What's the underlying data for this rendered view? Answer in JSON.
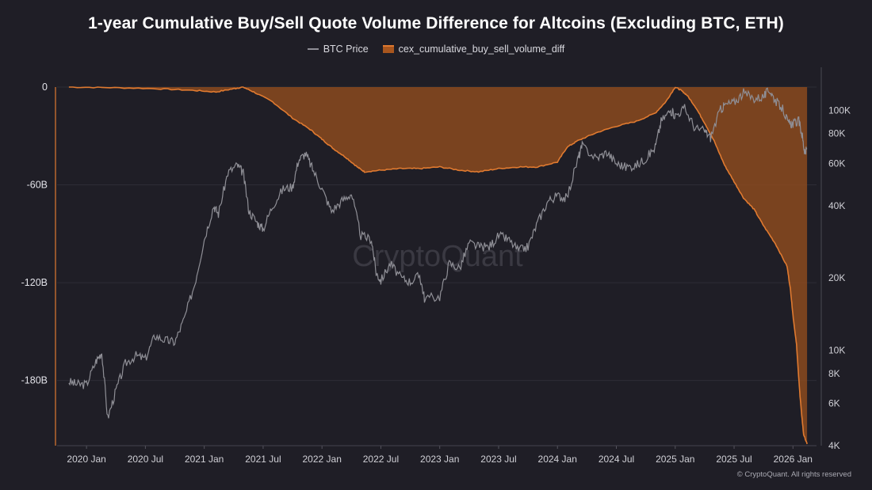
{
  "chart_data": {
    "type": "line",
    "title": "1-year Cumulative Buy/Sell Quote Volume Difference for Altcoins (Excluding BTC, ETH)",
    "legend_position": "top-center",
    "x_ticks": [
      "2020 Jan",
      "2020 Jul",
      "2021 Jan",
      "2021 Jul",
      "2022 Jan",
      "2022 Jul",
      "2023 Jan",
      "2023 Jul",
      "2024 Jan",
      "2024 Jul",
      "2025 Jan",
      "2025 Jul",
      "2026 Jan"
    ],
    "x_range": [
      2019.75,
      2026.2
    ],
    "y_left": {
      "ticks": [
        "0",
        "-60B",
        "-120B",
        "-180B"
      ],
      "tick_values": [
        0,
        -60,
        -120,
        -180
      ],
      "range": [
        0,
        -220
      ],
      "unit": "B"
    },
    "y_right": {
      "scale": "log",
      "ticks": [
        "100K",
        "80K",
        "60K",
        "40K",
        "20K",
        "10K",
        "8K",
        "6K",
        "4K"
      ],
      "tick_values": [
        100000,
        80000,
        60000,
        40000,
        20000,
        10000,
        8000,
        6000,
        4000
      ],
      "range": [
        4000,
        125000
      ]
    },
    "series": [
      {
        "name": "BTC Price",
        "axis": "right",
        "color": "#8f8f96",
        "points": [
          [
            2019.85,
            7400
          ],
          [
            2019.92,
            7200
          ],
          [
            2020.0,
            7200
          ],
          [
            2020.08,
            9000
          ],
          [
            2020.13,
            9800
          ],
          [
            2020.18,
            5200
          ],
          [
            2020.25,
            6800
          ],
          [
            2020.33,
            8800
          ],
          [
            2020.42,
            9500
          ],
          [
            2020.5,
            9200
          ],
          [
            2020.58,
            11500
          ],
          [
            2020.67,
            11000
          ],
          [
            2020.75,
            10800
          ],
          [
            2020.83,
            13500
          ],
          [
            2020.92,
            19000
          ],
          [
            2021.0,
            29000
          ],
          [
            2021.08,
            40000
          ],
          [
            2021.12,
            37000
          ],
          [
            2021.2,
            55000
          ],
          [
            2021.28,
            59000
          ],
          [
            2021.33,
            55000
          ],
          [
            2021.38,
            38000
          ],
          [
            2021.45,
            34000
          ],
          [
            2021.5,
            32000
          ],
          [
            2021.58,
            40000
          ],
          [
            2021.67,
            47000
          ],
          [
            2021.75,
            48000
          ],
          [
            2021.8,
            62000
          ],
          [
            2021.86,
            66000
          ],
          [
            2021.92,
            57000
          ],
          [
            2022.0,
            47000
          ],
          [
            2022.08,
            38000
          ],
          [
            2022.17,
            42000
          ],
          [
            2022.25,
            45000
          ],
          [
            2022.33,
            30000
          ],
          [
            2022.42,
            29000
          ],
          [
            2022.46,
            21000
          ],
          [
            2022.5,
            19500
          ],
          [
            2022.58,
            23000
          ],
          [
            2022.67,
            20000
          ],
          [
            2022.75,
            19300
          ],
          [
            2022.83,
            20500
          ],
          [
            2022.87,
            16500
          ],
          [
            2023.0,
            16700
          ],
          [
            2023.08,
            23000
          ],
          [
            2023.17,
            22000
          ],
          [
            2023.25,
            28000
          ],
          [
            2023.33,
            27000
          ],
          [
            2023.42,
            27000
          ],
          [
            2023.5,
            30000
          ],
          [
            2023.58,
            29000
          ],
          [
            2023.67,
            26000
          ],
          [
            2023.75,
            27000
          ],
          [
            2023.83,
            34000
          ],
          [
            2023.92,
            42000
          ],
          [
            2024.0,
            44000
          ],
          [
            2024.08,
            43000
          ],
          [
            2024.17,
            62000
          ],
          [
            2024.21,
            71000
          ],
          [
            2024.33,
            63000
          ],
          [
            2024.42,
            67000
          ],
          [
            2024.5,
            60000
          ],
          [
            2024.58,
            58000
          ],
          [
            2024.67,
            59000
          ],
          [
            2024.75,
            63000
          ],
          [
            2024.83,
            70000
          ],
          [
            2024.88,
            90000
          ],
          [
            2024.96,
            100000
          ],
          [
            2025.0,
            95000
          ],
          [
            2025.08,
            102000
          ],
          [
            2025.17,
            84000
          ],
          [
            2025.25,
            82000
          ],
          [
            2025.3,
            77000
          ],
          [
            2025.38,
            100000
          ],
          [
            2025.42,
            105000
          ],
          [
            2025.5,
            108000
          ],
          [
            2025.58,
            118000
          ],
          [
            2025.67,
            112000
          ],
          [
            2025.75,
            114000
          ],
          [
            2025.8,
            122000
          ],
          [
            2025.85,
            110000
          ],
          [
            2025.92,
            100000
          ],
          [
            2025.96,
            88000
          ],
          [
            2026.0,
            88000
          ],
          [
            2026.05,
            90000
          ],
          [
            2026.08,
            78000
          ],
          [
            2026.1,
            66000
          ],
          [
            2026.12,
            69000
          ]
        ]
      },
      {
        "name": "cex_cumulative_buy_sell_volume_diff",
        "axis": "left",
        "color": "#e07a30",
        "fill": "#8b4a1e",
        "points": [
          [
            2019.85,
            0
          ],
          [
            2020.2,
            -0.3
          ],
          [
            2020.6,
            -1
          ],
          [
            2020.9,
            -2
          ],
          [
            2021.1,
            -3
          ],
          [
            2021.25,
            -1
          ],
          [
            2021.33,
            0
          ],
          [
            2021.42,
            -3
          ],
          [
            2021.58,
            -9
          ],
          [
            2021.75,
            -19
          ],
          [
            2021.9,
            -26
          ],
          [
            2022.0,
            -32
          ],
          [
            2022.1,
            -38
          ],
          [
            2022.2,
            -43
          ],
          [
            2022.3,
            -49
          ],
          [
            2022.36,
            -52
          ],
          [
            2022.5,
            -51
          ],
          [
            2022.67,
            -50
          ],
          [
            2022.83,
            -50
          ],
          [
            2023.0,
            -49
          ],
          [
            2023.17,
            -51
          ],
          [
            2023.33,
            -52
          ],
          [
            2023.5,
            -50
          ],
          [
            2023.67,
            -49
          ],
          [
            2023.83,
            -49
          ],
          [
            2024.0,
            -46
          ],
          [
            2024.08,
            -37
          ],
          [
            2024.17,
            -33
          ],
          [
            2024.33,
            -28
          ],
          [
            2024.5,
            -24
          ],
          [
            2024.67,
            -21
          ],
          [
            2024.83,
            -16
          ],
          [
            2024.92,
            -9
          ],
          [
            2025.0,
            0
          ],
          [
            2025.05,
            -2
          ],
          [
            2025.1,
            -5
          ],
          [
            2025.17,
            -12
          ],
          [
            2025.25,
            -22
          ],
          [
            2025.33,
            -33
          ],
          [
            2025.42,
            -48
          ],
          [
            2025.5,
            -58
          ],
          [
            2025.58,
            -68
          ],
          [
            2025.67,
            -75
          ],
          [
            2025.75,
            -85
          ],
          [
            2025.85,
            -96
          ],
          [
            2025.95,
            -110
          ],
          [
            2025.98,
            -125
          ],
          [
            2026.0,
            -140
          ],
          [
            2026.03,
            -158
          ],
          [
            2026.06,
            -190
          ],
          [
            2026.09,
            -213
          ],
          [
            2026.12,
            -219
          ]
        ]
      }
    ],
    "watermark": "CryptoQuant"
  },
  "footer": {
    "copyright": "© CryptoQuant. All rights reserved"
  }
}
